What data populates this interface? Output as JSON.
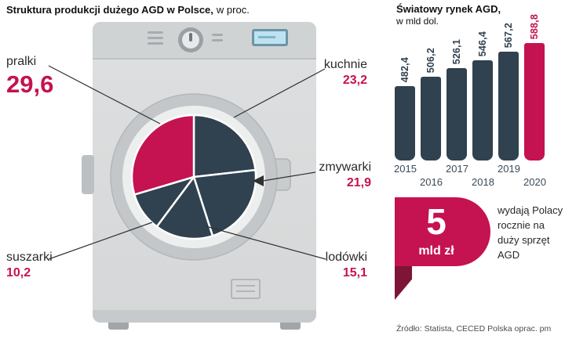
{
  "left_panel": {
    "title_bold": "Struktura produkcji dużego AGD w Polsce,",
    "title_suffix": "w proc."
  },
  "right_panel": {
    "title_bold": "Światowy rynek AGD,",
    "title_suffix": "w mld dol.",
    "badge": {
      "value": "5",
      "unit": "mld zł",
      "lines": [
        "wydają Polacy",
        "rocznie na",
        "duży sprzęt",
        "AGD"
      ]
    },
    "source": "Źródło: Statista, CECED Polska oprac. pm"
  },
  "colors": {
    "accent_crimson": "#c51250",
    "dark_slate": "#30414f",
    "tail_maroon": "#7e1436"
  },
  "chart_data": [
    {
      "type": "pie",
      "title": "Struktura produkcji dużego AGD w Polsce, w proc.",
      "unit": "proc.",
      "labels": [
        "pralki",
        "kuchnie",
        "zmywarki",
        "lodówki",
        "suszarki"
      ],
      "values": [
        29.6,
        23.2,
        21.9,
        15.1,
        10.2
      ],
      "value_labels": [
        "29,6",
        "23,2",
        "21,9",
        "15,1",
        "10,2"
      ],
      "colors": [
        "#c51250",
        "#30414f",
        "#30414f",
        "#30414f",
        "#30414f"
      ],
      "start_angle_deg_from_top_cw": 106.56,
      "legend": "none"
    },
    {
      "type": "bar",
      "title": "Światowy rynek AGD, w mld dol.",
      "unit": "mld dol.",
      "categories": [
        "2015",
        "2016",
        "2017",
        "2018",
        "2019",
        "2020"
      ],
      "values": [
        482.4,
        506.2,
        526.1,
        546.4,
        567.2,
        588.8
      ],
      "value_labels": [
        "482,4",
        "506,2",
        "526,1",
        "546,4",
        "567,2",
        "588,8"
      ],
      "colors": [
        "#30414f",
        "#30414f",
        "#30414f",
        "#30414f",
        "#30414f",
        "#c51250"
      ],
      "ylim": [
        0,
        600
      ],
      "grid": "off",
      "legend": "none"
    }
  ]
}
